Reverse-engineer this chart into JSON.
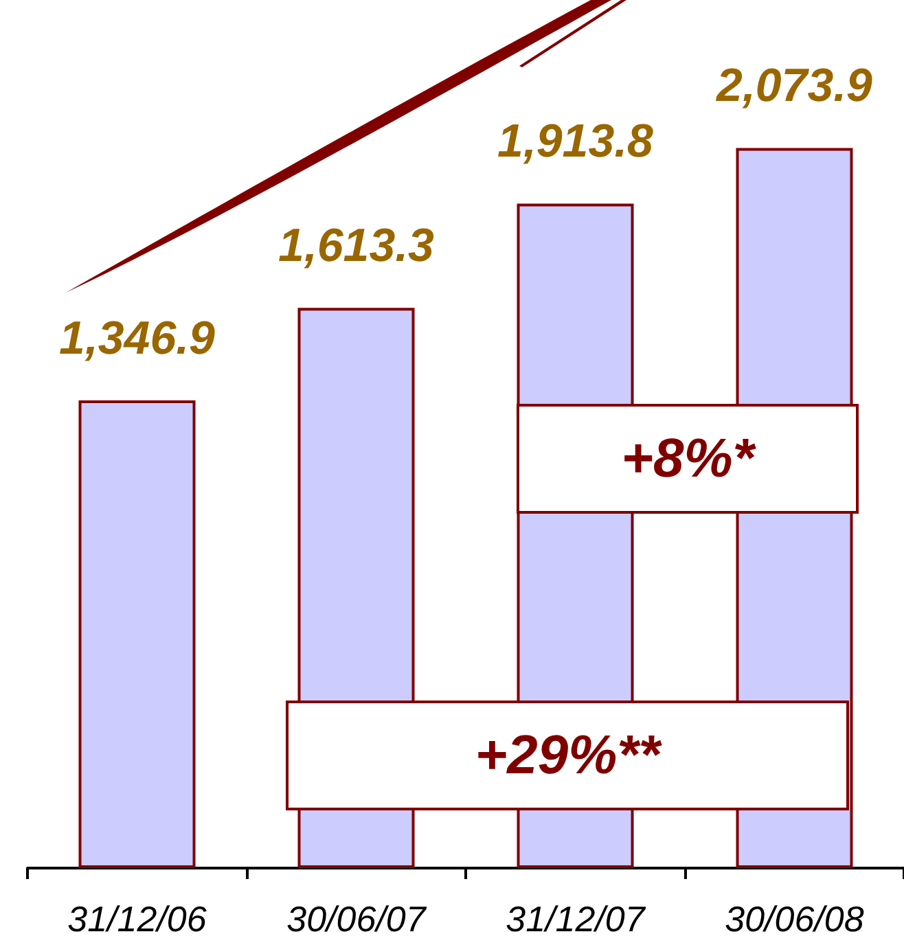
{
  "chart_data": {
    "type": "bar",
    "categories": [
      "31/12/06",
      "30/06/07",
      "31/12/07",
      "30/06/08"
    ],
    "values": [
      1346.9,
      1613.3,
      1913.8,
      2073.9
    ],
    "color": "#ccccff",
    "value_labels": [
      "1,346.9",
      "1,613.3",
      "1,913.8",
      "2,073.9"
    ],
    "annotations": [
      "+8%*",
      "+29%**"
    ]
  }
}
